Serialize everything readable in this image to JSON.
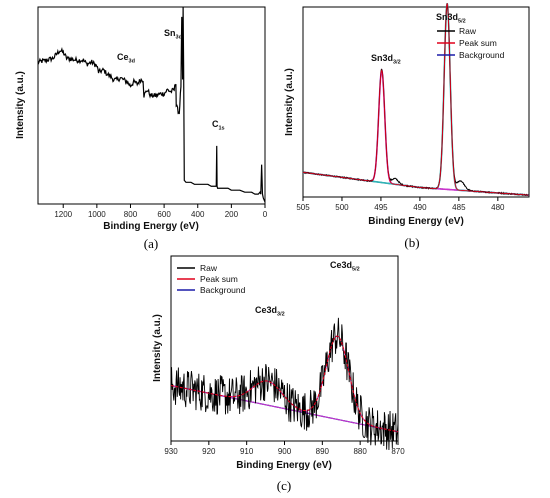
{
  "chart_data": [
    {
      "panel": "(a)",
      "type": "line",
      "xlabel": "Binding Energy (eV)",
      "ylabel": "Intensity (a.u.)",
      "xlim": [
        1350,
        0
      ],
      "x_ticks": [
        1200,
        1000,
        800,
        600,
        400,
        200,
        0
      ],
      "annotations": [
        {
          "base": "Sn",
          "sub": "3d",
          "x": 487
        },
        {
          "base": "Ce",
          "sub": "3d",
          "x": 884
        },
        {
          "base": "C",
          "sub": "1s",
          "x": 285
        }
      ],
      "series": [
        {
          "color": "#000000",
          "x": [
            1350,
            1300,
            1260,
            1220,
            1200,
            1180,
            1120,
            1080,
            1060,
            1030,
            1000,
            990,
            960,
            940,
            920,
            900,
            880,
            860,
            840,
            820,
            800,
            790,
            780,
            760,
            750,
            740,
            725,
            720,
            700,
            680,
            650,
            620,
            600,
            580,
            560,
            540,
            530,
            528,
            520,
            510,
            500,
            495,
            490,
            487,
            484,
            480,
            470,
            460,
            440,
            420,
            400,
            380,
            360,
            340,
            320,
            300,
            290,
            287,
            285,
            282,
            280,
            260,
            240,
            220,
            200,
            180,
            150,
            120,
            100,
            80,
            60,
            40,
            30,
            25,
            20,
            15,
            10,
            5,
            0
          ],
          "y": [
            0.72,
            0.73,
            0.74,
            0.78,
            0.77,
            0.74,
            0.73,
            0.73,
            0.71,
            0.72,
            0.7,
            0.67,
            0.68,
            0.66,
            0.65,
            0.63,
            0.63,
            0.64,
            0.63,
            0.62,
            0.6,
            0.61,
            0.62,
            0.61,
            0.62,
            0.63,
            0.63,
            0.55,
            0.58,
            0.55,
            0.55,
            0.56,
            0.56,
            0.58,
            0.57,
            0.58,
            0.62,
            0.5,
            0.48,
            0.46,
            0.6,
            0.95,
            0.62,
            1.0,
            0.7,
            0.12,
            0.11,
            0.11,
            0.11,
            0.1,
            0.1,
            0.1,
            0.1,
            0.1,
            0.09,
            0.09,
            0.09,
            0.3,
            0.09,
            0.08,
            0.08,
            0.08,
            0.08,
            0.08,
            0.07,
            0.07,
            0.07,
            0.06,
            0.06,
            0.06,
            0.05,
            0.05,
            0.06,
            0.05,
            0.2,
            0.05,
            0.03,
            0.02,
            0.01
          ]
        }
      ]
    },
    {
      "panel": "(b)",
      "type": "line",
      "xlabel": "Binding Energy (eV)",
      "ylabel": "Intensity (a.u.)",
      "xlim": [
        505,
        476
      ],
      "x_ticks": [
        505,
        500,
        495,
        490,
        485,
        480
      ],
      "annotations": [
        {
          "base": "Sn3d",
          "sub": "5/2",
          "x": 486.5
        },
        {
          "base": "Sn3d",
          "sub": "3/2",
          "x": 494.9
        }
      ],
      "legend": {
        "position": "top-right",
        "entries": [
          "Raw",
          "Peak sum",
          "Background"
        ]
      },
      "peaks": [
        {
          "center": 494.9,
          "height": 0.59,
          "width": 0.55
        },
        {
          "center": 486.5,
          "height": 0.98,
          "width": 0.55
        }
      ],
      "background": {
        "x": [
          505,
          490,
          476
        ],
        "y": [
          0.13,
          0.05,
          0.01
        ]
      },
      "series": [
        {
          "name": "Raw",
          "color": "#000000"
        },
        {
          "name": "Peak sum",
          "color": "#e0001b"
        },
        {
          "name": "Background",
          "color": "#1c1ca8"
        }
      ]
    },
    {
      "panel": "(c)",
      "type": "line",
      "xlabel": "Binding Energy (eV)",
      "ylabel": "Intensity (a.u.)",
      "xlim": [
        930,
        870
      ],
      "x_ticks": [
        930,
        920,
        910,
        900,
        890,
        880,
        870
      ],
      "annotations": [
        {
          "base": "Ce3d",
          "sub": "5/2",
          "x": 886
        },
        {
          "base": "Ce3d",
          "sub": "3/2",
          "x": 904.5
        }
      ],
      "legend": {
        "position": "top-left",
        "entries": [
          "Raw",
          "Peak sum",
          "Background"
        ]
      },
      "peaks": [
        {
          "center": 904.5,
          "height": 0.13,
          "width": 5.5
        },
        {
          "center": 886,
          "height": 0.45,
          "width": 4.2
        }
      ],
      "background": {
        "x": [
          930,
          870
        ],
        "y": [
          0.3,
          0.05
        ]
      },
      "series": [
        {
          "name": "Raw",
          "color": "#000000"
        },
        {
          "name": "Peak sum",
          "color": "#e0001b"
        },
        {
          "name": "Background",
          "color": "#1c1ca8"
        }
      ]
    }
  ]
}
